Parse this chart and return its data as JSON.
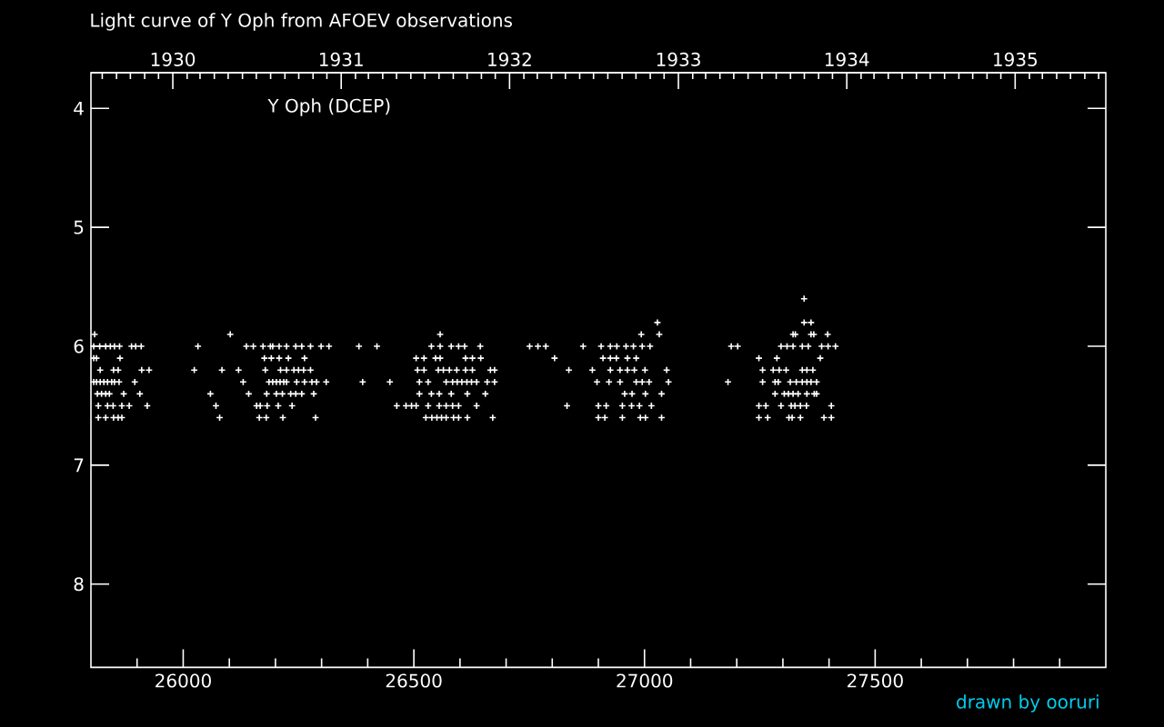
{
  "chart_data": {
    "type": "scatter",
    "title": "Light curve of Y Oph from AFOEV observations",
    "annotations": [
      "Y Oph (DCEP)",
      "drawn by ooruri"
    ],
    "color": "#ffffff",
    "marker": "cross",
    "x": [
      27346,
      27028,
      27346,
      27361,
      25808,
      26102,
      26557,
      26993,
      27032,
      27322,
      27327,
      27361,
      27367,
      27397,
      25806,
      25819,
      25832,
      25842,
      25851,
      25862,
      25888,
      25897,
      25909,
      26032,
      26137,
      26152,
      26173,
      26189,
      26194,
      26208,
      26224,
      26244,
      26257,
      26276,
      26299,
      26316,
      26381,
      26420,
      26538,
      26557,
      26581,
      26597,
      26610,
      26644,
      26751,
      26769,
      26786,
      26867,
      26906,
      26926,
      26940,
      26960,
      26976,
      26995,
      27012,
      27188,
      27202,
      27296,
      27309,
      27322,
      27342,
      27355,
      27384,
      27398,
      27414,
      25806,
      25812,
      25863,
      26176,
      26191,
      26208,
      26228,
      26263,
      26505,
      26522,
      26547,
      26557,
      26612,
      26627,
      26645,
      26805,
      26910,
      26926,
      26939,
      26963,
      26982,
      27248,
      27287,
      27381,
      25820,
      25849,
      25859,
      25910,
      25926,
      26024,
      26084,
      26120,
      26178,
      26211,
      26224,
      26240,
      26250,
      26261,
      26276,
      26508,
      26522,
      26553,
      26564,
      26577,
      26593,
      26612,
      26627,
      26666,
      26675,
      26836,
      26887,
      26926,
      26947,
      26963,
      26978,
      27001,
      27048,
      27256,
      27279,
      27292,
      27307,
      27342,
      27352,
      27365,
      25806,
      25812,
      25820,
      25828,
      25836,
      25845,
      25851,
      25861,
      25895,
      26130,
      26186,
      26194,
      26202,
      26210,
      26218,
      26224,
      26246,
      26263,
      26279,
      26289,
      26310,
      26389,
      26448,
      26512,
      26531,
      26570,
      26584,
      26594,
      26604,
      26615,
      26625,
      26636,
      26659,
      26675,
      26897,
      26923,
      26947,
      26982,
      26995,
      27010,
      27052,
      27181,
      27256,
      27283,
      27290,
      27316,
      27329,
      27342,
      27352,
      27361,
      27373,
      25814,
      25823,
      25832,
      25840,
      25871,
      25906,
      26059,
      26142,
      26181,
      26202,
      26215,
      26233,
      26244,
      26257,
      26283,
      26512,
      26538,
      26555,
      26581,
      26616,
      26655,
      26957,
      26973,
      27002,
      27037,
      27283,
      27303,
      27312,
      27322,
      27333,
      27352,
      27368,
      27373,
      25816,
      25836,
      25848,
      25867,
      25883,
      25922,
      26071,
      26159,
      26167,
      26182,
      26206,
      26236,
      26463,
      26483,
      26495,
      26505,
      26531,
      26555,
      26570,
      26584,
      26597,
      26636,
      26832,
      26900,
      26917,
      26952,
      26972,
      26989,
      27015,
      27248,
      27263,
      27296,
      27318,
      27326,
      27338,
      27351,
      27405,
      25816,
      25832,
      25849,
      25859,
      25867,
      26079,
      26165,
      26180,
      26216,
      26287,
      26526,
      26539,
      26550,
      26560,
      26570,
      26586,
      26597,
      26616,
      26671,
      26900,
      26914,
      26952,
      26991,
      27002,
      27037,
      27248,
      27267,
      27313,
      27320,
      27338,
      27389,
      27405
    ],
    "values": [
      5.6,
      5.8,
      5.8,
      5.8,
      5.9,
      5.9,
      5.9,
      5.9,
      5.9,
      5.9,
      5.9,
      5.9,
      5.9,
      5.9,
      6.0,
      6.0,
      6.0,
      6.0,
      6.0,
      6.0,
      6.0,
      6.0,
      6.0,
      6.0,
      6.0,
      6.0,
      6.0,
      6.0,
      6.0,
      6.0,
      6.0,
      6.0,
      6.0,
      6.0,
      6.0,
      6.0,
      6.0,
      6.0,
      6.0,
      6.0,
      6.0,
      6.0,
      6.0,
      6.0,
      6.0,
      6.0,
      6.0,
      6.0,
      6.0,
      6.0,
      6.0,
      6.0,
      6.0,
      6.0,
      6.0,
      6.0,
      6.0,
      6.0,
      6.0,
      6.0,
      6.0,
      6.0,
      6.0,
      6.0,
      6.0,
      6.1,
      6.1,
      6.1,
      6.1,
      6.1,
      6.1,
      6.1,
      6.1,
      6.1,
      6.1,
      6.1,
      6.1,
      6.1,
      6.1,
      6.1,
      6.1,
      6.1,
      6.1,
      6.1,
      6.1,
      6.1,
      6.1,
      6.1,
      6.1,
      6.2,
      6.2,
      6.2,
      6.2,
      6.2,
      6.2,
      6.2,
      6.2,
      6.2,
      6.2,
      6.2,
      6.2,
      6.2,
      6.2,
      6.2,
      6.2,
      6.2,
      6.2,
      6.2,
      6.2,
      6.2,
      6.2,
      6.2,
      6.2,
      6.2,
      6.2,
      6.2,
      6.2,
      6.2,
      6.2,
      6.2,
      6.2,
      6.2,
      6.2,
      6.2,
      6.2,
      6.2,
      6.2,
      6.2,
      6.2,
      6.3,
      6.3,
      6.3,
      6.3,
      6.3,
      6.3,
      6.3,
      6.3,
      6.3,
      6.3,
      6.3,
      6.3,
      6.3,
      6.3,
      6.3,
      6.3,
      6.3,
      6.3,
      6.3,
      6.3,
      6.3,
      6.3,
      6.3,
      6.3,
      6.3,
      6.3,
      6.3,
      6.3,
      6.3,
      6.3,
      6.3,
      6.3,
      6.3,
      6.3,
      6.3,
      6.3,
      6.3,
      6.3,
      6.3,
      6.3,
      6.3,
      6.3,
      6.3,
      6.3,
      6.3,
      6.3,
      6.3,
      6.3,
      6.3,
      6.3,
      6.3,
      6.4,
      6.4,
      6.4,
      6.4,
      6.4,
      6.4,
      6.4,
      6.4,
      6.4,
      6.4,
      6.4,
      6.4,
      6.4,
      6.4,
      6.4,
      6.4,
      6.4,
      6.4,
      6.4,
      6.4,
      6.4,
      6.4,
      6.4,
      6.4,
      6.4,
      6.4,
      6.4,
      6.4,
      6.4,
      6.4,
      6.4,
      6.4,
      6.4,
      6.5,
      6.5,
      6.5,
      6.5,
      6.5,
      6.5,
      6.5,
      6.5,
      6.5,
      6.5,
      6.5,
      6.5,
      6.5,
      6.5,
      6.5,
      6.5,
      6.5,
      6.5,
      6.5,
      6.5,
      6.5,
      6.5,
      6.5,
      6.5,
      6.5,
      6.5,
      6.5,
      6.5,
      6.5,
      6.5,
      6.5,
      6.5,
      6.5,
      6.5,
      6.5,
      6.5,
      6.5,
      6.6,
      6.6,
      6.6,
      6.6,
      6.6,
      6.6,
      6.6,
      6.6,
      6.6,
      6.6,
      6.6,
      6.6,
      6.6,
      6.6,
      6.6,
      6.6,
      6.6,
      6.6,
      6.6,
      6.6,
      6.6,
      6.6,
      6.6,
      6.6,
      6.6,
      6.6,
      6.6,
      6.6,
      6.6,
      6.6,
      6.6,
      6.6
    ],
    "xlim": [
      25800,
      28000
    ],
    "xticks": [
      {
        "value": 25900,
        "label": null
      },
      26000,
      {
        "value": 26100,
        "label": null
      },
      {
        "value": 26200,
        "label": null
      },
      {
        "value": 26300,
        "label": null
      },
      {
        "value": 26400,
        "label": null
      },
      26500,
      {
        "value": 26600,
        "label": null
      },
      {
        "value": 26700,
        "label": null
      },
      {
        "value": 26800,
        "label": null
      },
      {
        "value": 26900,
        "label": null
      },
      27000,
      {
        "value": 27100,
        "label": null
      },
      {
        "value": 27200,
        "label": null
      },
      {
        "value": 27300,
        "label": null
      },
      {
        "value": 27400,
        "label": null
      },
      27500,
      {
        "value": 27600,
        "label": null
      },
      {
        "value": 27700,
        "label": null
      },
      {
        "value": 27800,
        "label": null
      },
      {
        "value": 27900,
        "label": null
      }
    ],
    "ylim": [
      8.7,
      3.7
    ],
    "yticks": [
      4,
      5,
      6,
      7,
      8
    ],
    "x2lim": [
      "1929-07-07T12:00",
      "1935-07-16T12:00"
    ],
    "x2ticks": [
      {
        "value": "1929-08",
        "label": null
      },
      {
        "value": "1929-09",
        "label": null
      },
      {
        "value": "1929-10",
        "label": null
      },
      {
        "value": "1929-11",
        "label": null
      },
      {
        "value": "1929-12",
        "label": null
      },
      "1930",
      {
        "value": "1930-02",
        "label": null
      },
      {
        "value": "1930-03",
        "label": null
      },
      {
        "value": "1930-04",
        "label": null
      },
      {
        "value": "1930-05",
        "label": null
      },
      {
        "value": "1930-06",
        "label": null
      },
      {
        "value": "1930-07",
        "label": null
      },
      {
        "value": "1930-08",
        "label": null
      },
      {
        "value": "1930-09",
        "label": null
      },
      {
        "value": "1930-10",
        "label": null
      },
      {
        "value": "1930-11",
        "label": null
      },
      {
        "value": "1930-12",
        "label": null
      },
      "1931",
      {
        "value": "1931-02",
        "label": null
      },
      {
        "value": "1931-03",
        "label": null
      },
      {
        "value": "1931-04",
        "label": null
      },
      {
        "value": "1931-05",
        "label": null
      },
      {
        "value": "1931-06",
        "label": null
      },
      {
        "value": "1931-07",
        "label": null
      },
      {
        "value": "1931-08",
        "label": null
      },
      {
        "value": "1931-09",
        "label": null
      },
      {
        "value": "1931-10",
        "label": null
      },
      {
        "value": "1931-11",
        "label": null
      },
      {
        "value": "1931-12",
        "label": null
      },
      "1932",
      {
        "value": "1932-02",
        "label": null
      },
      {
        "value": "1932-03",
        "label": null
      },
      {
        "value": "1932-04",
        "label": null
      },
      {
        "value": "1932-05",
        "label": null
      },
      {
        "value": "1932-06",
        "label": null
      },
      {
        "value": "1932-07",
        "label": null
      },
      {
        "value": "1932-08",
        "label": null
      },
      {
        "value": "1932-09",
        "label": null
      },
      {
        "value": "1932-10",
        "label": null
      },
      {
        "value": "1932-11",
        "label": null
      },
      {
        "value": "1932-12",
        "label": null
      },
      "1933",
      {
        "value": "1933-02",
        "label": null
      },
      {
        "value": "1933-03",
        "label": null
      },
      {
        "value": "1933-04",
        "label": null
      },
      {
        "value": "1933-05",
        "label": null
      },
      {
        "value": "1933-06",
        "label": null
      },
      {
        "value": "1933-07",
        "label": null
      },
      {
        "value": "1933-08",
        "label": null
      },
      {
        "value": "1933-09",
        "label": null
      },
      {
        "value": "1933-10",
        "label": null
      },
      {
        "value": "1933-11",
        "label": null
      },
      {
        "value": "1933-12",
        "label": null
      },
      "1934",
      {
        "value": "1934-02",
        "label": null
      },
      {
        "value": "1934-03",
        "label": null
      },
      {
        "value": "1934-04",
        "label": null
      },
      {
        "value": "1934-05",
        "label": null
      },
      {
        "value": "1934-06",
        "label": null
      },
      {
        "value": "1934-07",
        "label": null
      },
      {
        "value": "1934-08",
        "label": null
      },
      {
        "value": "1934-09",
        "label": null
      },
      {
        "value": "1934-10",
        "label": null
      },
      {
        "value": "1934-11",
        "label": null
      },
      {
        "value": "1934-12",
        "label": null
      },
      "1935",
      {
        "value": "1935-02",
        "label": null
      },
      {
        "value": "1935-03",
        "label": null
      },
      {
        "value": "1935-04",
        "label": null
      },
      {
        "value": "1935-05",
        "label": null
      },
      {
        "value": "1935-06",
        "label": null
      },
      {
        "value": "1935-07",
        "label": null
      }
    ]
  }
}
